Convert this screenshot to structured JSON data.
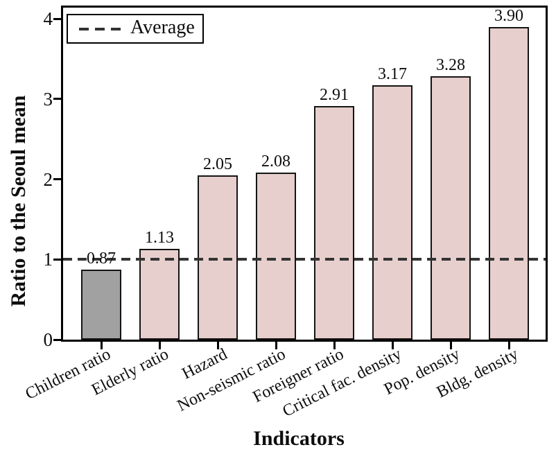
{
  "chart_data": {
    "type": "bar",
    "title": "",
    "xlabel": "Indicators",
    "ylabel": "Ratio to the Seoul mean",
    "categories": [
      "Children ratio",
      "Elderly ratio",
      "Hazard",
      "Non-seismic ratio",
      "Foreigner ratio",
      "Critical fac. density",
      "Pop. density",
      "Bldg. density"
    ],
    "values": [
      0.87,
      1.13,
      2.05,
      2.08,
      2.91,
      3.17,
      3.28,
      3.9
    ],
    "value_labels": [
      "0.87",
      "1.13",
      "2.05",
      "2.08",
      "2.91",
      "3.17",
      "3.28",
      "3.90"
    ],
    "bar_colors": [
      "#A1A1A1",
      "#E6CFCC",
      "#E6CFCC",
      "#E6CFCC",
      "#E6CFCC",
      "#E6CFCC",
      "#E6CFCC",
      "#E6CFCC"
    ],
    "bar_edge_color": "#141414",
    "ylim": [
      0,
      4
    ],
    "yticks": [
      "0",
      "1",
      "2",
      "3",
      "4"
    ],
    "grid": false,
    "legend_position": "upper-left",
    "reference_line": {
      "value": 1.0,
      "label": "Average",
      "style": "dashed",
      "color": "#333333"
    }
  },
  "colors": {
    "background": "#FFFFFF",
    "axis": "#000000",
    "highlight_bar": "#A1A1A1",
    "default_bar": "#E6CFCC",
    "dashed_line": "#333333"
  }
}
